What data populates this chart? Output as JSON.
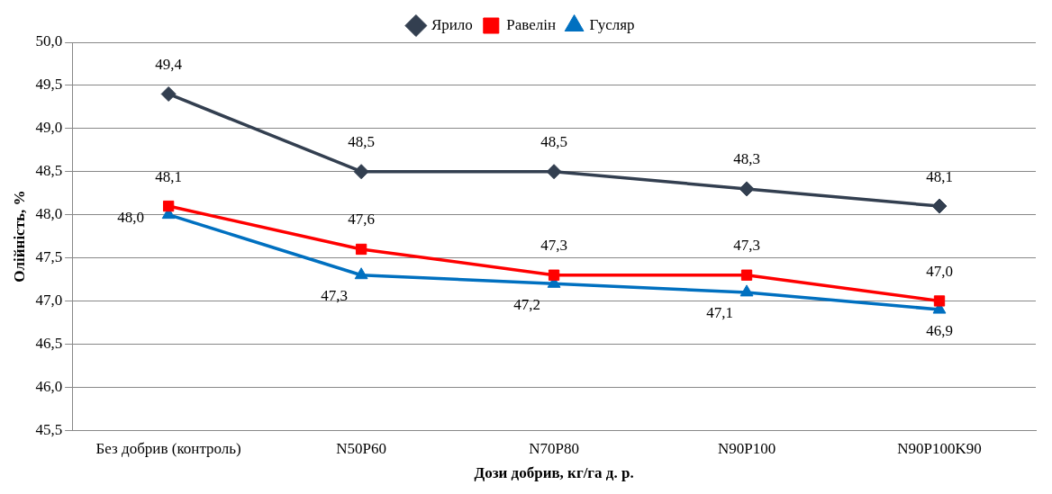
{
  "chart_data": {
    "type": "line",
    "xlabel": "Дози добрив, кг/га д. р.",
    "ylabel": "Олійність, %",
    "categories": [
      "Без добрив (контроль)",
      "N50P60",
      "N70P80",
      "N90P100",
      "N90P100K90"
    ],
    "series": [
      {
        "name": "Ярило",
        "color": "#333f50",
        "marker": "diamond",
        "values": [
          49.4,
          48.5,
          48.5,
          48.3,
          48.1
        ],
        "value_labels": [
          "49,4",
          "48,5",
          "48,5",
          "48,3",
          "48,1"
        ]
      },
      {
        "name": "Равелін",
        "color": "#ff0000",
        "marker": "square",
        "values": [
          48.1,
          47.6,
          47.3,
          47.3,
          47.0
        ],
        "value_labels": [
          "48,1",
          "47,6",
          "47,3",
          "47,3",
          "47,0"
        ]
      },
      {
        "name": "Гусляр",
        "color": "#0070c0",
        "marker": "triangle",
        "values": [
          48.0,
          47.3,
          47.2,
          47.1,
          46.9
        ],
        "value_labels": [
          "48,0",
          "47,3",
          "47,2",
          "47,1",
          "46,9"
        ]
      }
    ],
    "ylim": [
      45.5,
      50
    ],
    "yticks": [
      {
        "value": 45.5,
        "label": "45,5"
      },
      {
        "value": 46,
        "label": "46,0"
      },
      {
        "value": 46.5,
        "label": "46,5"
      },
      {
        "value": 47,
        "label": "47,0"
      },
      {
        "value": 47.5,
        "label": "47,5"
      },
      {
        "value": 48,
        "label": "48,0"
      },
      {
        "value": 48.5,
        "label": "48,5"
      },
      {
        "value": 49,
        "label": "49,0"
      },
      {
        "value": 49.5,
        "label": "49,5"
      },
      {
        "value": 50,
        "label": "50,0"
      }
    ],
    "grid": "y",
    "legend": "top",
    "line_style": "solid"
  }
}
